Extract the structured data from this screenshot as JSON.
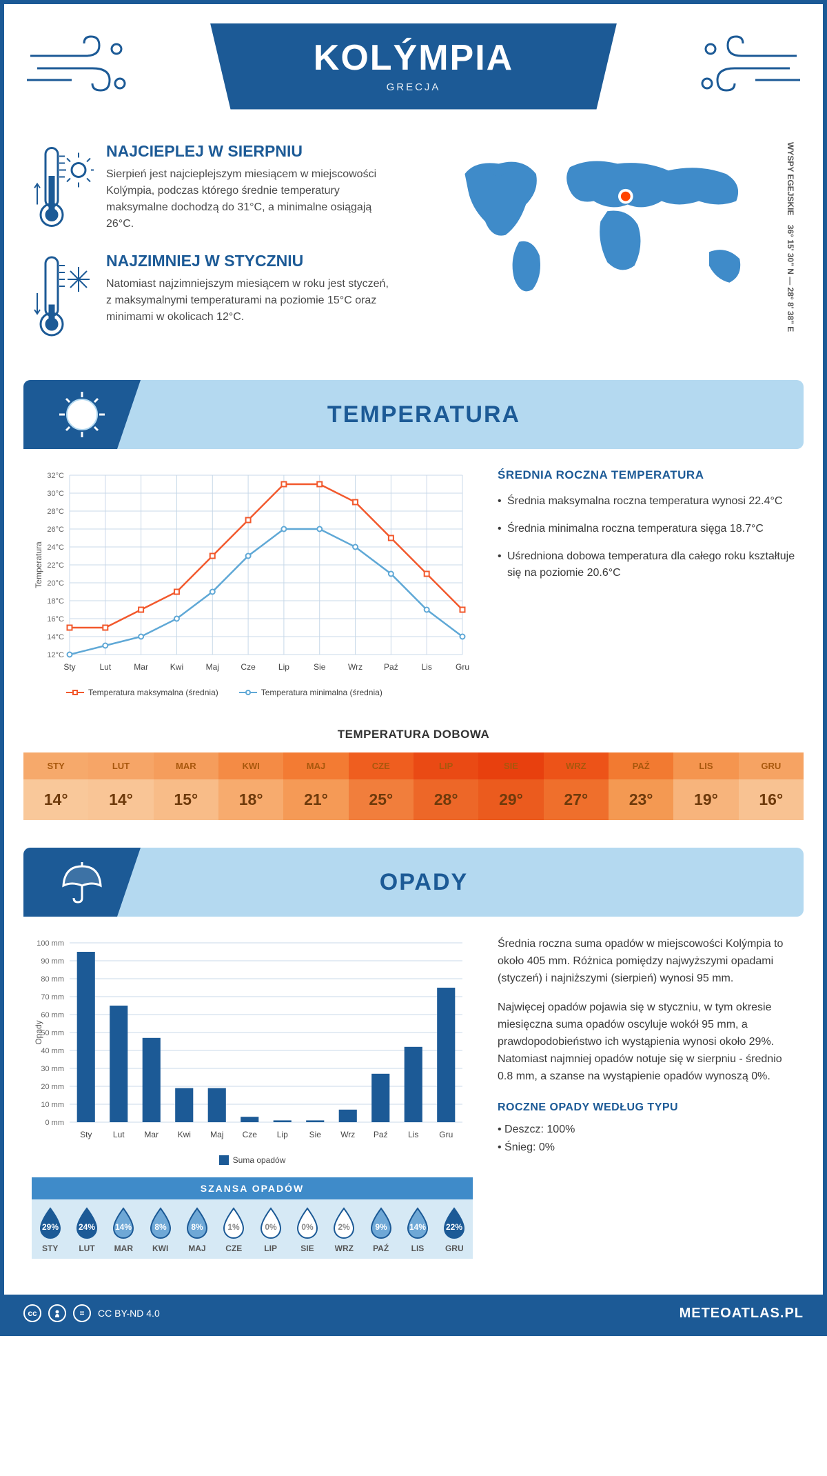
{
  "title": "KOLÝMPIA",
  "country": "GRECJA",
  "coords": {
    "text": "36° 15' 30\" N — 28° 8' 38\" E",
    "region": "WYSPY EGEJSKIE"
  },
  "hot": {
    "heading": "NAJCIEPLEJ W SIERPNIU",
    "body": "Sierpień jest najcieplejszym miesiącem w miejscowości Kolýmpia, podczas którego średnie temperatury maksymalne dochodzą do 31°C, a minimalne osiągają 26°C."
  },
  "cold": {
    "heading": "NAJZIMNIEJ W STYCZNIU",
    "body": "Natomiast najzimniejszym miesiącem w roku jest styczeń, z maksymalnymi temperaturami na poziomie 15°C oraz minimami w okolicach 12°C."
  },
  "colors": {
    "primary": "#1c5a96",
    "section_bg": "#b4d9f0",
    "max_line": "#f2582c",
    "min_line": "#5fa8d6",
    "bar_fill": "#1c5a96",
    "grid": "#c8d8e8"
  },
  "temp_section": {
    "title": "TEMPERATURA",
    "avg_title": "ŚREDNIA ROCZNA TEMPERATURA",
    "bullets": [
      "Średnia maksymalna roczna temperatura wynosi 22.4°C",
      "Średnia minimalna roczna temperatura sięga 18.7°C",
      "Uśredniona dobowa temperatura dla całego roku kształtuje się na poziomie 20.6°C"
    ]
  },
  "temp_chart": {
    "type": "line",
    "months": [
      "Sty",
      "Lut",
      "Mar",
      "Kwi",
      "Maj",
      "Cze",
      "Lip",
      "Sie",
      "Wrz",
      "Paź",
      "Lis",
      "Gru"
    ],
    "max": [
      15,
      15,
      17,
      19,
      23,
      27,
      31,
      31,
      29,
      25,
      21,
      17
    ],
    "min": [
      12,
      13,
      14,
      16,
      19,
      23,
      26,
      26,
      24,
      21,
      17,
      14
    ],
    "ymin": 12,
    "ymax": 32,
    "ystep": 2,
    "ylabel": "Temperatura",
    "legend_max": "Temperatura maksymalna (średnia)",
    "legend_min": "Temperatura minimalna (średnia)"
  },
  "daily": {
    "title": "TEMPERATURA DOBOWA",
    "values": [
      "14°",
      "14°",
      "15°",
      "18°",
      "21°",
      "25°",
      "28°",
      "29°",
      "27°",
      "23°",
      "19°",
      "16°"
    ],
    "head_bg": [
      "#f6a96b",
      "#f6a567",
      "#f59d5c",
      "#f48b45",
      "#f37b33",
      "#ef5e1f",
      "#ea4a14",
      "#e8400e",
      "#ed5318",
      "#f27a31",
      "#f5954f",
      "#f6a363"
    ],
    "val_bg": [
      "#f9c89a",
      "#f9c596",
      "#f8bc88",
      "#f7ab6e",
      "#f59a56",
      "#f17e3c",
      "#ed6728",
      "#eb5b1e",
      "#ef6f2c",
      "#f49952",
      "#f7b47c",
      "#f8c292"
    ],
    "head_color": "#a8570c",
    "val_color": "#6e3a0b"
  },
  "rain_section": {
    "title": "OPADY",
    "p1": "Średnia roczna suma opadów w miejscowości Kolýmpia to około 405 mm. Różnica pomiędzy najwyższymi opadami (styczeń) i najniższymi (sierpień) wynosi 95 mm.",
    "p2": "Najwięcej opadów pojawia się w styczniu, w tym okresie miesięczna suma opadów oscyluje wokół 95 mm, a prawdopodobieństwo ich wystąpienia wynosi około 29%. Natomiast najmniej opadów notuje się w sierpniu - średnio 0.8 mm, a szanse na wystąpienie opadów wynoszą 0%.",
    "type_title": "ROCZNE OPADY WEDŁUG TYPU",
    "type_rain": "• Deszcz: 100%",
    "type_snow": "• Śnieg: 0%"
  },
  "rain_chart": {
    "type": "bar",
    "months": [
      "Sty",
      "Lut",
      "Mar",
      "Kwi",
      "Maj",
      "Cze",
      "Lip",
      "Sie",
      "Wrz",
      "Paź",
      "Lis",
      "Gru"
    ],
    "values": [
      95,
      65,
      47,
      19,
      19,
      3,
      1,
      1,
      7,
      27,
      42,
      75
    ],
    "ymax": 100,
    "ystep": 10,
    "ylabel": "Opady",
    "legend": "Suma opadów"
  },
  "chance": {
    "title": "SZANSA OPADÓW",
    "months": [
      "STY",
      "LUT",
      "MAR",
      "KWI",
      "MAJ",
      "CZE",
      "LIP",
      "SIE",
      "WRZ",
      "PAŹ",
      "LIS",
      "GRU"
    ],
    "values": [
      "29%",
      "24%",
      "14%",
      "8%",
      "8%",
      "1%",
      "0%",
      "0%",
      "2%",
      "9%",
      "14%",
      "22%"
    ],
    "nums": [
      29,
      24,
      14,
      8,
      8,
      1,
      0,
      0,
      2,
      9,
      14,
      22
    ]
  },
  "footer": {
    "license": "CC BY-ND 4.0",
    "brand": "METEOATLAS.PL"
  }
}
